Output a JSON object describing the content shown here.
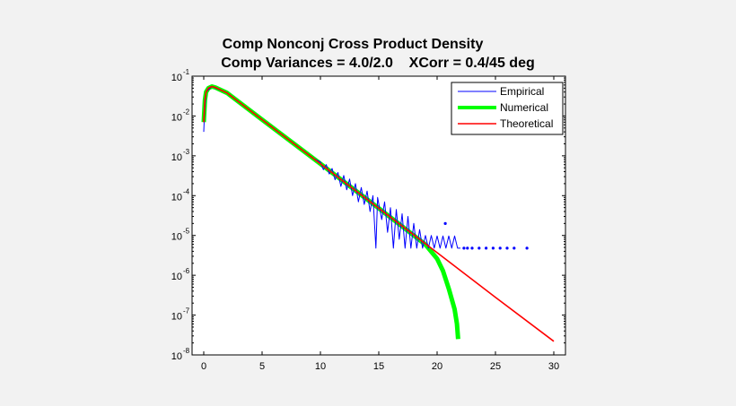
{
  "chart_data": {
    "type": "line",
    "title": [
      "Comp Nonconj Cross Product Density",
      "Comp Variances = 4.0/2.0    XCorr = 0.4/45 deg"
    ],
    "xlabel": "",
    "ylabel": "",
    "xlim": [
      -1,
      31
    ],
    "ylim": [
      1e-08,
      0.1
    ],
    "yscale": "log",
    "grid": false,
    "legend_position": "top-right",
    "x_ticks": [
      "0",
      "5",
      "10",
      "15",
      "20",
      "25",
      "30"
    ],
    "x_tick_values": [
      0,
      5,
      10,
      15,
      20,
      25,
      30
    ],
    "y_ticks": [
      {
        "base": "10",
        "exp": "-1",
        "value": 0.1
      },
      {
        "base": "10",
        "exp": "-2",
        "value": 0.01
      },
      {
        "base": "10",
        "exp": "-3",
        "value": 0.001
      },
      {
        "base": "10",
        "exp": "-4",
        "value": 0.0001
      },
      {
        "base": "10",
        "exp": "-5",
        "value": 1e-05
      },
      {
        "base": "10",
        "exp": "-6",
        "value": 1e-06
      },
      {
        "base": "10",
        "exp": "-7",
        "value": 1e-07
      },
      {
        "base": "10",
        "exp": "-8",
        "value": 1e-08
      }
    ],
    "series": [
      {
        "name": "Empirical",
        "color": "#0000ff",
        "points": [
          [
            0,
            0.004
          ],
          [
            0.05,
            0.01
          ],
          [
            0.2,
            0.04
          ],
          [
            0.7,
            0.055
          ],
          [
            2,
            0.038
          ],
          [
            5,
            0.0081
          ],
          [
            9.5,
            0.00083
          ],
          [
            10,
            0.0007
          ],
          [
            10.25,
            0.00045
          ],
          [
            10.5,
            0.0006
          ],
          [
            10.75,
            0.00035
          ],
          [
            11,
            0.00048
          ],
          [
            11.25,
            0.00025
          ],
          [
            11.5,
            0.00038
          ],
          [
            11.75,
            0.00017
          ],
          [
            12,
            0.00032
          ],
          [
            12.25,
            0.00014
          ],
          [
            12.5,
            0.00026
          ],
          [
            12.75,
            0.0001
          ],
          [
            13,
            0.0002
          ],
          [
            13.25,
            7e-05
          ],
          [
            13.5,
            0.00016
          ],
          [
            13.75,
            6e-05
          ],
          [
            14,
            0.00013
          ],
          [
            14.25,
            4e-05
          ],
          [
            14.5,
            0.0001
          ],
          [
            14.75,
            4.8e-06
          ],
          [
            14.9,
            9e-05
          ],
          [
            15.25,
            2.5e-05
          ],
          [
            15.5,
            7e-05
          ],
          [
            15.75,
            1.2e-05
          ],
          [
            16,
            5e-05
          ],
          [
            16.25,
            4.8e-06
          ],
          [
            16.5,
            4.5e-05
          ],
          [
            16.75,
            8e-06
          ],
          [
            17,
            3.5e-05
          ],
          [
            17.25,
            4.8e-06
          ],
          [
            17.5,
            3e-05
          ],
          [
            17.75,
            4.8e-06
          ],
          [
            18,
            2e-05
          ],
          [
            18.25,
            4.8e-06
          ],
          [
            18.5,
            1.4e-05
          ],
          [
            18.75,
            4.8e-06
          ],
          [
            19,
            1e-05
          ],
          [
            19.25,
            4.8e-06
          ],
          [
            19.5,
            1e-05
          ],
          [
            19.75,
            4.8e-06
          ],
          [
            20,
            9.7e-06
          ],
          [
            20.25,
            4.8e-06
          ],
          [
            20.5,
            9.7e-06
          ],
          [
            20.75,
            4.8e-06
          ],
          [
            21,
            9.7e-06
          ],
          [
            21.25,
            4.8e-06
          ],
          [
            21.5,
            9.7e-06
          ],
          [
            21.75,
            4.8e-06
          ],
          [
            22,
            4.8e-06
          ]
        ],
        "markers": [
          [
            20.7,
            2e-05
          ],
          [
            22.3,
            4.8e-06
          ],
          [
            22.6,
            4.8e-06
          ],
          [
            23,
            4.8e-06
          ],
          [
            23.6,
            4.8e-06
          ],
          [
            24.2,
            4.8e-06
          ],
          [
            24.8,
            4.8e-06
          ],
          [
            25.4,
            4.8e-06
          ],
          [
            26,
            4.8e-06
          ],
          [
            26.6,
            4.8e-06
          ],
          [
            27.7,
            4.8e-06
          ]
        ]
      },
      {
        "name": "Numerical",
        "color": "#00ff00",
        "points": [
          [
            0,
            0.007
          ],
          [
            0.1,
            0.025
          ],
          [
            0.2,
            0.04
          ],
          [
            0.4,
            0.05
          ],
          [
            0.7,
            0.055
          ],
          [
            1,
            0.052
          ],
          [
            2,
            0.038
          ],
          [
            5,
            0.0081
          ],
          [
            10,
            0.00063
          ],
          [
            15,
            4.8e-05
          ],
          [
            18,
            1e-05
          ],
          [
            19,
            5.9e-06
          ],
          [
            20,
            2.6e-06
          ],
          [
            20.5,
            1.3e-06
          ],
          [
            21,
            4.6e-07
          ],
          [
            21.5,
            1.4e-07
          ],
          [
            21.7,
            6e-08
          ],
          [
            21.8,
            2.5e-08
          ]
        ]
      },
      {
        "name": "Theoretical",
        "color": "#ff0000",
        "points": [
          [
            0,
            0.007
          ],
          [
            0.1,
            0.025
          ],
          [
            0.2,
            0.04
          ],
          [
            0.4,
            0.05
          ],
          [
            0.7,
            0.055
          ],
          [
            1,
            0.052
          ],
          [
            2,
            0.038
          ],
          [
            5,
            0.0081
          ],
          [
            10,
            0.00063
          ],
          [
            15,
            4.8e-05
          ],
          [
            20,
            3.7e-06
          ],
          [
            25,
            2.8e-07
          ],
          [
            30,
            2.2e-08
          ]
        ]
      }
    ]
  }
}
